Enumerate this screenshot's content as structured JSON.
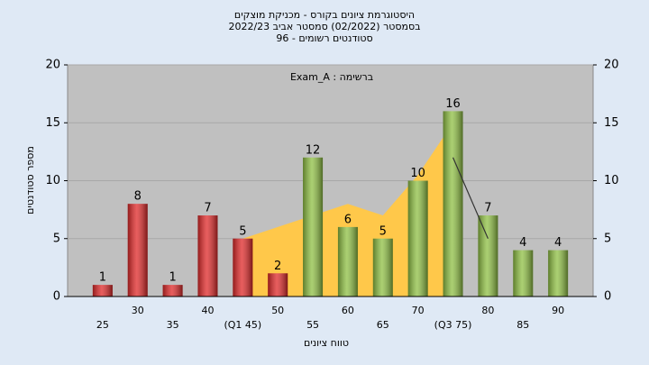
{
  "chart_data": {
    "type": "bar",
    "title": [
      "היסטוגרמת ציונים בקורס - מכניקת מוצקים",
      "בסמסטר  (02/2022)  סמסטר אביב 2022/23",
      "סטודנטים רשומים - 96"
    ],
    "annotation": "Exam_A : ברשימה",
    "ylabel": "מספר סטודנטים",
    "xlabel": "טווח ציונים",
    "categories": [
      "25",
      "30",
      "35",
      "40",
      "(Q1 45)",
      "50",
      "55",
      "60",
      "65",
      "70",
      "(Q3 75)",
      "80",
      "85",
      "90"
    ],
    "values": [
      1,
      8,
      1,
      7,
      5,
      2,
      12,
      6,
      5,
      10,
      16,
      7,
      4,
      4
    ],
    "colors": [
      "#e02828",
      "#e02828",
      "#e02828",
      "#e02828",
      "#e02828",
      "#e02828",
      "#8fc043",
      "#8fc043",
      "#8fc043",
      "#8fc043",
      "#8fc043",
      "#8fc043",
      "#8fc043",
      "#8fc043"
    ],
    "area_values": [
      null,
      null,
      null,
      null,
      5,
      6,
      7,
      8,
      7,
      10.5,
      15,
      null,
      null,
      null
    ],
    "area_color": "#ffc84a",
    "line_values": [
      null,
      null,
      null,
      null,
      null,
      null,
      null,
      null,
      null,
      null,
      12,
      5,
      null,
      null
    ],
    "line_color": "#333333",
    "ylim": [
      0,
      20
    ],
    "yticks": [
      0,
      5,
      10,
      15,
      20
    ],
    "y2lim": [
      0,
      20
    ],
    "y2ticks": [
      0,
      5,
      10,
      15,
      20
    ],
    "grid": true
  }
}
